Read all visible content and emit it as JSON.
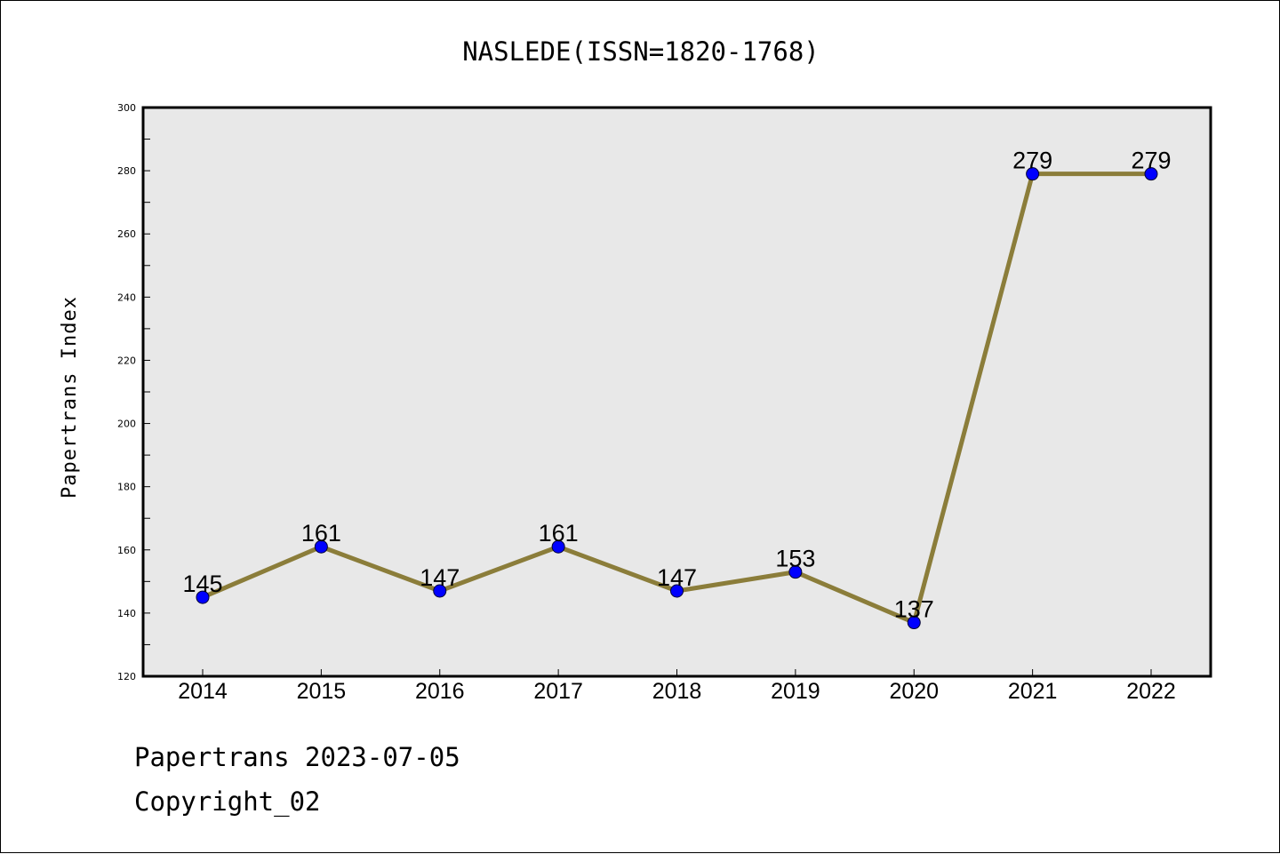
{
  "chart_data": {
    "type": "line",
    "title": "NASLEDE(ISSN=1820-1768)",
    "ylabel": "Papertrans Index",
    "xlabel": "",
    "x": [
      "2014",
      "2015",
      "2016",
      "2017",
      "2018",
      "2019",
      "2020",
      "2021",
      "2022"
    ],
    "series": [
      {
        "values": [
          145,
          161,
          147,
          161,
          147,
          153,
          137,
          279,
          279
        ]
      }
    ],
    "ylim": [
      120,
      300
    ],
    "yticks": [
      120,
      140,
      160,
      180,
      200,
      220,
      240,
      260,
      280,
      300
    ],
    "grid": false,
    "colors": {
      "line": "#8b7d3a",
      "marker": "#0000ff",
      "plot_bg": "#e8e8e8"
    }
  },
  "footer": {
    "line1": "Papertrans 2023-07-05",
    "line2": "Copyright_02"
  }
}
